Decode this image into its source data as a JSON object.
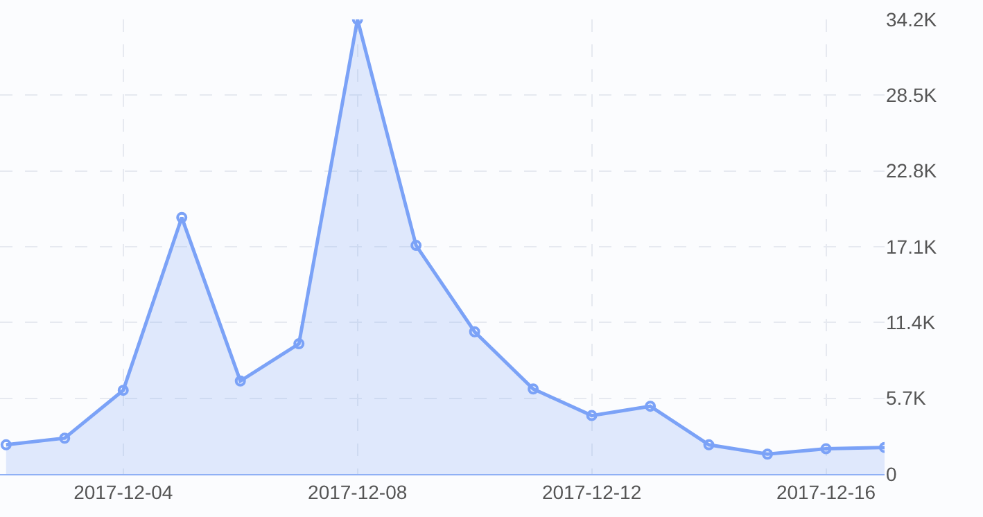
{
  "chart_data": {
    "type": "area",
    "x": [
      "2017-12-02",
      "2017-12-03",
      "2017-12-04",
      "2017-12-05",
      "2017-12-06",
      "2017-12-07",
      "2017-12-08",
      "2017-12-09",
      "2017-12-10",
      "2017-12-11",
      "2017-12-12",
      "2017-12-13",
      "2017-12-14",
      "2017-12-15",
      "2017-12-16",
      "2017-12-17"
    ],
    "series": [
      {
        "color": "#7ba2f7",
        "values": [
          2200,
          2700,
          6300,
          19300,
          7000,
          9800,
          34200,
          17200,
          10700,
          6400,
          4400,
          5100,
          2200,
          1500,
          1900,
          2000
        ]
      }
    ],
    "xlim": [
      "2017-12-01T21:30",
      "2017-12-17"
    ],
    "xticks": [
      "2017-12-04",
      "2017-12-08",
      "2017-12-12",
      "2017-12-16"
    ],
    "ylim": [
      0,
      34200
    ],
    "yticks": [
      0,
      {
        "value": 5700,
        "label": "5.7K"
      },
      {
        "value": 11400,
        "label": "11.4K"
      },
      {
        "value": 17100,
        "label": "17.1K"
      },
      {
        "value": 22800,
        "label": "22.8K"
      },
      {
        "value": 28500,
        "label": "28.5K"
      },
      {
        "value": 34200,
        "label": "34.2K"
      }
    ],
    "grid": true,
    "marker": "circle",
    "line_style": "solid"
  }
}
